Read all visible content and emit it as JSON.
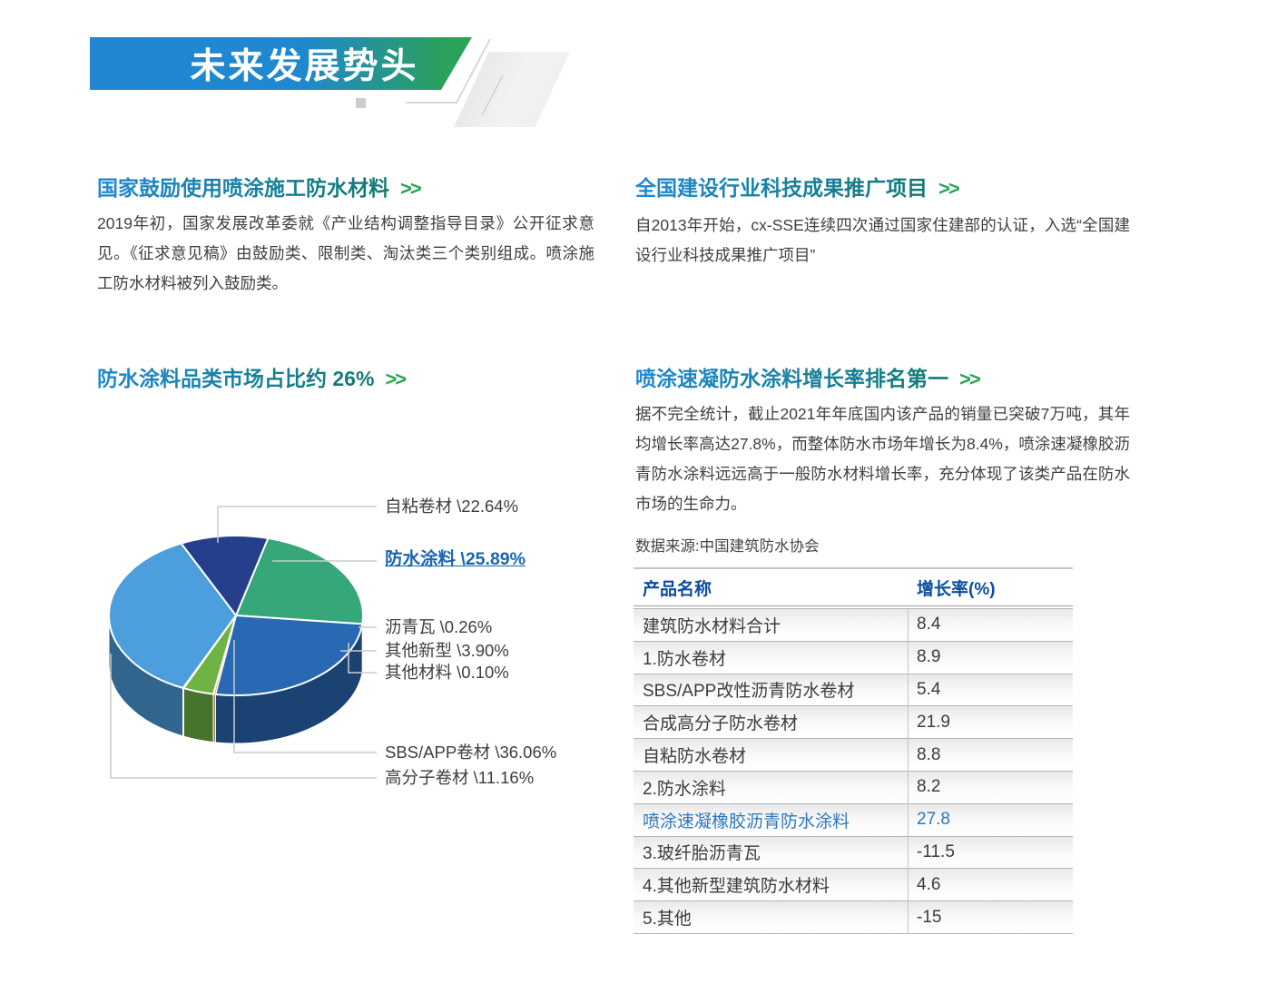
{
  "banner": {
    "title": "未来发展势头"
  },
  "sections": {
    "s1": {
      "heading": "国家鼓励使用喷涂施工防水材料",
      "arrow": ">>",
      "body": "2019年初，国家发展改革委就《产业结构调整指导目录》公开征求意见。《征求意见稿》由鼓励类、限制类、淘汰类三个类别组成。喷涂施工防水材料被列入鼓励类。"
    },
    "s2": {
      "heading": "全国建设行业科技成果推广项目",
      "arrow": ">>",
      "body": "自2013年开始，cx-SSE连续四次通过国家住建部的认证，入选“全国建设行业科技成果推广项目”"
    },
    "s3": {
      "heading": "防水涂料品类市场占比约 26%",
      "arrow": ">>"
    },
    "s4": {
      "heading": "喷涂速凝防水涂料增长率排名第一",
      "arrow": ">>",
      "body": "据不完全统计，截止2021年年底国内该产品的销量已突破7万吨，其年均增长率高达27.8%，而整体防水市场年增长为8.4%，喷涂速凝橡胶沥青防水涂料远远高于一般防水材料增长率，充分体现了该类产品在防水市场的生命力。",
      "source": "数据来源:中国建筑防水协会"
    }
  },
  "table": {
    "headers": [
      "产品名称",
      "增长率(%)"
    ],
    "rows": [
      {
        "name": "建筑防水材料合计",
        "value": "8.4",
        "highlight": false
      },
      {
        "name": "1.防水卷材",
        "value": "8.9",
        "highlight": false
      },
      {
        "name": "SBS/APP改性沥青防水卷材",
        "value": "5.4",
        "highlight": false
      },
      {
        "name": "合成高分子防水卷材",
        "value": "21.9",
        "highlight": false
      },
      {
        "name": "自粘防水卷材",
        "value": "8.8",
        "highlight": false
      },
      {
        "name": "2.防水涂料",
        "value": "8.2",
        "highlight": false
      },
      {
        "name": "喷涂速凝橡胶沥青防水涂料",
        "value": "27.8",
        "highlight": true
      },
      {
        "name": "3.玻纤胎沥青瓦",
        "value": "-11.5",
        "highlight": false
      },
      {
        "name": "4.其他新型建筑防水材料",
        "value": "4.6",
        "highlight": false
      },
      {
        "name": "5.其他",
        "value": "-15",
        "highlight": false
      }
    ]
  },
  "chart_data": {
    "type": "pie",
    "title": "防水涂料品类市场占比约 26%",
    "style": "3d",
    "start_angle_deg": -75.4,
    "direction": "clockwise",
    "slices": [
      {
        "label": "自粘卷材",
        "value": 22.64,
        "display": "自粘卷材 \\22.64%",
        "color": "#36a778"
      },
      {
        "label": "防水涂料",
        "value": 25.89,
        "display": "防水涂料 \\25.89%",
        "color": "#2968b3",
        "emphasized": true
      },
      {
        "label": "沥青瓦",
        "value": 0.26,
        "display": "沥青瓦 \\0.26%",
        "color": "#f5a04a"
      },
      {
        "label": "其他新型",
        "value": 3.9,
        "display": "其他新型 \\3.90%",
        "color": "#6fb344"
      },
      {
        "label": "其他材料",
        "value": 0.1,
        "display": "其他材料 \\0.10%",
        "color": "#c9cdd2"
      },
      {
        "label": "SBS/APP卷材",
        "value": 36.06,
        "display": "SBS/APP卷材 \\36.06%",
        "color": "#4c9edd"
      },
      {
        "label": "高分子卷材",
        "value": 11.16,
        "display": "高分子卷材 \\11.16%",
        "color": "#263f8d"
      }
    ]
  },
  "colors": {
    "heading_gradient_start": "#1f88d3",
    "heading_gradient_end": "#117a72",
    "arrow_green": "#28a350",
    "banner_gradient_start": "#2187d4",
    "banner_gradient_end": "#2ba45a",
    "table_header_blue": "#0b4da2",
    "highlight_blue": "#2e77bd",
    "body_text": "#3f3f3f"
  }
}
